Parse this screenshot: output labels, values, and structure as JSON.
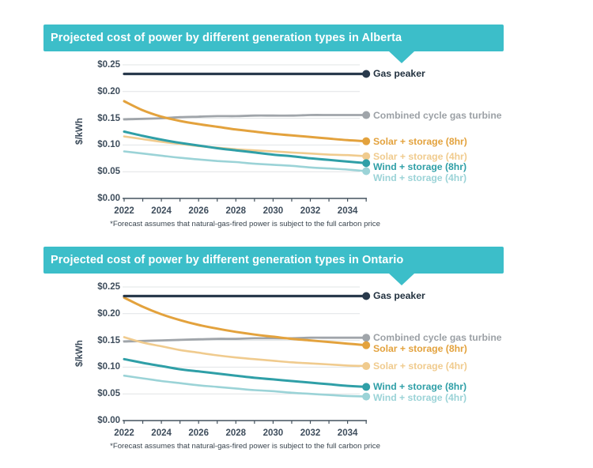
{
  "page_background": "#ffffff",
  "colors": {
    "banner": "#3CBEC9",
    "axis_text": "#3E4D5C",
    "gridline": "#E1E4E6",
    "axis_line": "#44525E",
    "footnote_text": "#39444E"
  },
  "chart_data": [
    {
      "type": "line",
      "title": "Projected cost of power by different generation types in Alberta",
      "xlabel": "",
      "ylabel": "$/kWh",
      "footnote": "*Forecast assumes that natural-gas-fired power is subject to the full carbon price",
      "x": [
        2022,
        2023,
        2024,
        2025,
        2026,
        2027,
        2028,
        2029,
        2030,
        2031,
        2032,
        2033,
        2034,
        2035
      ],
      "xtick_labels": [
        "2022",
        "2024",
        "2026",
        "2028",
        "2030",
        "2032",
        "2034"
      ],
      "xtick_years": [
        2022,
        2024,
        2026,
        2028,
        2030,
        2032,
        2034
      ],
      "ylim": [
        0,
        0.25
      ],
      "yticks": [
        0,
        0.05,
        0.1,
        0.15,
        0.2,
        0.25
      ],
      "ytick_labels": [
        "$0.00",
        "$0.05",
        "$0.10",
        "$0.15",
        "$0.20",
        "$0.25"
      ],
      "grid": true,
      "legend_position": "right",
      "series": [
        {
          "name": "Combined cycle gas turbine",
          "color": "#A0A5AA",
          "label_color": "#9CA1A6",
          "width": 2.8,
          "values": [
            0.148,
            0.149,
            0.15,
            0.152,
            0.153,
            0.154,
            0.154,
            0.155,
            0.155,
            0.155,
            0.156,
            0.156,
            0.156,
            0.156
          ]
        },
        {
          "name": "Solar + storage (4hr)",
          "color": "#F0CB8E",
          "label_color": "#F0CB8E",
          "width": 2.6,
          "values": [
            0.116,
            0.111,
            0.106,
            0.102,
            0.098,
            0.095,
            0.092,
            0.09,
            0.088,
            0.086,
            0.084,
            0.082,
            0.081,
            0.079
          ]
        },
        {
          "name": "Wind + storage (4hr)",
          "color": "#9BD3D7",
          "label_color": "#9BD3D7",
          "width": 2.6,
          "values": [
            0.088,
            0.084,
            0.08,
            0.076,
            0.073,
            0.07,
            0.068,
            0.065,
            0.063,
            0.061,
            0.058,
            0.056,
            0.054,
            0.051
          ]
        },
        {
          "name": "Solar + storage (8hr)",
          "color": "#E3A23D",
          "label_color": "#E3A23D",
          "width": 3,
          "values": [
            0.182,
            0.165,
            0.153,
            0.145,
            0.139,
            0.134,
            0.129,
            0.125,
            0.121,
            0.118,
            0.115,
            0.112,
            0.109,
            0.107
          ]
        },
        {
          "name": "Wind + storage (8hr)",
          "color": "#2F9FA7",
          "label_color": "#2F9FA7",
          "width": 3,
          "values": [
            0.125,
            0.117,
            0.11,
            0.104,
            0.099,
            0.094,
            0.09,
            0.086,
            0.082,
            0.079,
            0.075,
            0.072,
            0.069,
            0.066
          ]
        },
        {
          "name": "Gas peaker",
          "color": "#293A4C",
          "label_color": "#22313F",
          "width": 3.2,
          "values": [
            0.233,
            0.233,
            0.233,
            0.233,
            0.233,
            0.233,
            0.233,
            0.233,
            0.233,
            0.233,
            0.233,
            0.233,
            0.233,
            0.233
          ]
        }
      ]
    },
    {
      "type": "line",
      "title": "Projected cost of power by different generation types in Ontario",
      "xlabel": "",
      "ylabel": "$/kWh",
      "footnote": "*Forecast assumes that natural-gas-fired power is subject to the full carbon price",
      "x": [
        2022,
        2023,
        2024,
        2025,
        2026,
        2027,
        2028,
        2029,
        2030,
        2031,
        2032,
        2033,
        2034,
        2035
      ],
      "xtick_labels": [
        "2022",
        "2024",
        "2026",
        "2028",
        "2030",
        "2032",
        "2034"
      ],
      "xtick_years": [
        2022,
        2024,
        2026,
        2028,
        2030,
        2032,
        2034
      ],
      "ylim": [
        0,
        0.25
      ],
      "yticks": [
        0,
        0.05,
        0.1,
        0.15,
        0.2,
        0.25
      ],
      "ytick_labels": [
        "$0.00",
        "$0.05",
        "$0.10",
        "$0.15",
        "$0.20",
        "$0.25"
      ],
      "grid": true,
      "legend_position": "right",
      "series": [
        {
          "name": "Combined cycle gas turbine",
          "color": "#A0A5AA",
          "label_color": "#9CA1A6",
          "width": 2.8,
          "values": [
            0.148,
            0.149,
            0.15,
            0.151,
            0.152,
            0.153,
            0.153,
            0.154,
            0.154,
            0.154,
            0.155,
            0.155,
            0.155,
            0.155
          ]
        },
        {
          "name": "Solar + storage (4hr)",
          "color": "#F0CB8E",
          "label_color": "#F0CB8E",
          "width": 2.6,
          "values": [
            0.156,
            0.146,
            0.139,
            0.132,
            0.127,
            0.122,
            0.118,
            0.115,
            0.112,
            0.109,
            0.107,
            0.105,
            0.103,
            0.102
          ]
        },
        {
          "name": "Wind + storage (4hr)",
          "color": "#9BD3D7",
          "label_color": "#9BD3D7",
          "width": 2.6,
          "values": [
            0.084,
            0.079,
            0.074,
            0.07,
            0.066,
            0.063,
            0.06,
            0.057,
            0.055,
            0.052,
            0.05,
            0.048,
            0.046,
            0.045
          ]
        },
        {
          "name": "Solar + storage (8hr)",
          "color": "#E3A23D",
          "label_color": "#E3A23D",
          "width": 3,
          "values": [
            0.23,
            0.213,
            0.199,
            0.188,
            0.179,
            0.172,
            0.166,
            0.161,
            0.157,
            0.153,
            0.15,
            0.147,
            0.144,
            0.141
          ]
        },
        {
          "name": "Wind + storage (8hr)",
          "color": "#2F9FA7",
          "label_color": "#2F9FA7",
          "width": 3,
          "values": [
            0.115,
            0.108,
            0.102,
            0.096,
            0.092,
            0.088,
            0.084,
            0.08,
            0.077,
            0.074,
            0.071,
            0.068,
            0.065,
            0.063
          ]
        },
        {
          "name": "Gas peaker",
          "color": "#293A4C",
          "label_color": "#22313F",
          "width": 3.2,
          "values": [
            0.233,
            0.233,
            0.233,
            0.233,
            0.233,
            0.233,
            0.233,
            0.233,
            0.233,
            0.233,
            0.233,
            0.233,
            0.233,
            0.233
          ]
        }
      ]
    }
  ]
}
